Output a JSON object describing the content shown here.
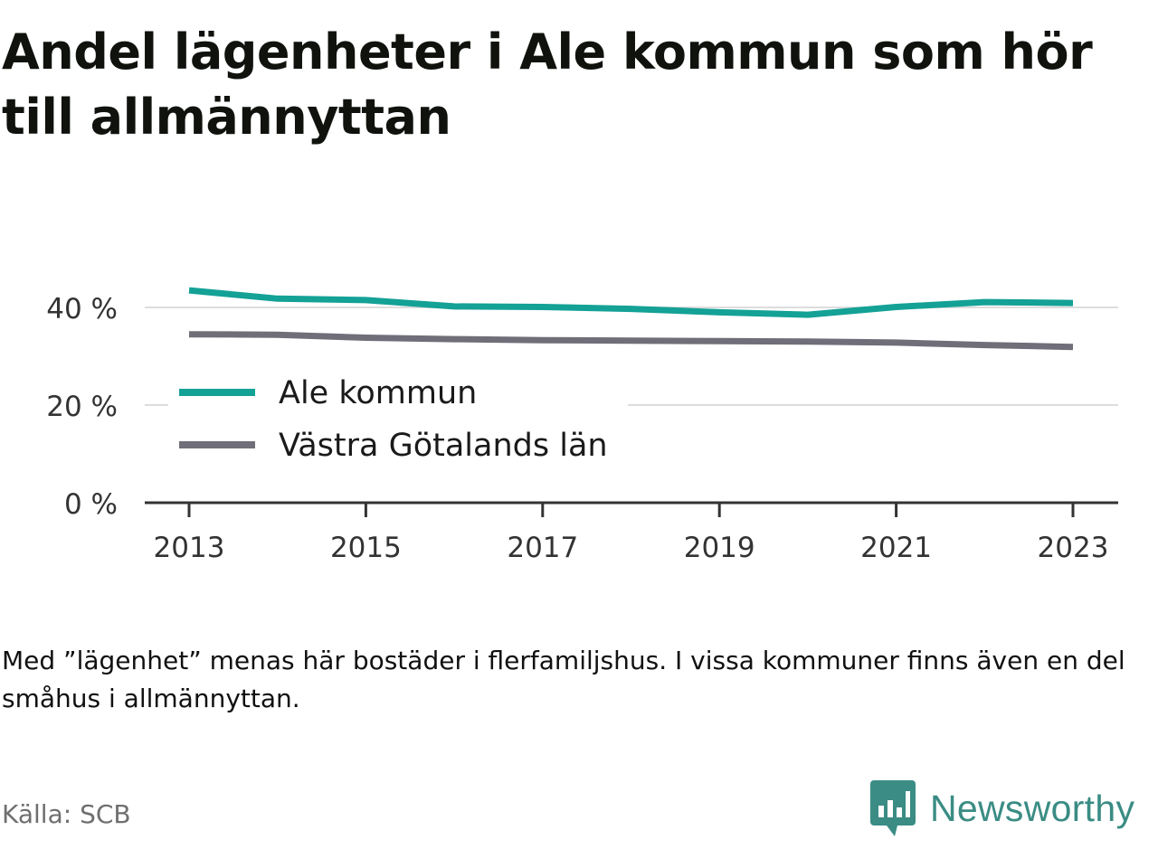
{
  "title": "Andel lägenheter i Ale kommun som hör till allmännyttan",
  "note": "Med ”lägenhet” menas här bostäder i flerfamiljshus. I vissa kommuner finns även en del småhus i allmännyttan.",
  "source": "Källa: SCB",
  "brand": {
    "name": "Newsworthy",
    "icon": "newsworthy-logo-icon",
    "color": "#3a8c84"
  },
  "chart_data": {
    "type": "line",
    "title": "Andel lägenheter i Ale kommun som hör till allmännyttan",
    "x": [
      2013,
      2014,
      2015,
      2016,
      2017,
      2018,
      2019,
      2020,
      2021,
      2022,
      2023
    ],
    "x_ticks": [
      "2013",
      "2015",
      "2017",
      "2019",
      "2021",
      "2023"
    ],
    "y_ticks": [
      "0 %",
      "20 %",
      "40 %"
    ],
    "ylim": [
      0,
      45
    ],
    "grid": true,
    "legend_position": "middle-left",
    "series": [
      {
        "name": "Ale kommun",
        "color": "#14a196",
        "values": [
          43.5,
          41.8,
          41.5,
          40.2,
          40.1,
          39.7,
          39.0,
          38.5,
          40.1,
          41.1,
          40.9
        ]
      },
      {
        "name": "Västra Götalands län",
        "color": "#706e78",
        "values": [
          34.5,
          34.4,
          33.8,
          33.5,
          33.3,
          33.2,
          33.1,
          33.0,
          32.8,
          32.3,
          31.9
        ]
      }
    ]
  }
}
